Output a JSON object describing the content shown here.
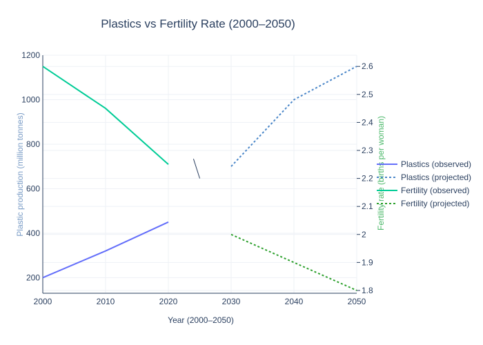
{
  "chart_data": {
    "type": "line",
    "title": "Plastics vs Fertility Rate (2000–2050)",
    "xlabel": "Year (2000–2050)",
    "ylabel_left": "Plastic production (million tonnes)",
    "ylabel_right": "Fertility rate (births per woman)",
    "xlim": [
      2000,
      2050
    ],
    "ylim_left": [
      130,
      1200
    ],
    "ylim_right": [
      1.79,
      2.64
    ],
    "x_ticks": [
      "2000",
      "2010",
      "2020",
      "2030",
      "2040",
      "2050"
    ],
    "y_left_ticks": [
      "200",
      "400",
      "600",
      "800",
      "1000",
      "1200"
    ],
    "y_right_ticks": [
      "1.8",
      "1.9",
      "2",
      "2.1",
      "2.2",
      "2.3",
      "2.4",
      "2.5",
      "2.6"
    ],
    "grid": true,
    "legend_position": "right",
    "series": [
      {
        "name": "Plastics (observed)",
        "axis": "left",
        "dash": "solid",
        "color": "#636efa",
        "x": [
          2000,
          2010,
          2020
        ],
        "y": [
          200,
          320,
          450
        ]
      },
      {
        "name": "Plastics (projected)",
        "axis": "left",
        "dash": "dot",
        "color": "#4a86c8",
        "x": [
          2030,
          2040,
          2050
        ],
        "y": [
          700,
          1000,
          1150
        ]
      },
      {
        "name": "Fertility (observed)",
        "axis": "right",
        "dash": "solid",
        "color": "#00cc96",
        "x": [
          2000,
          2010,
          2020
        ],
        "y": [
          2.6,
          2.45,
          2.25
        ]
      },
      {
        "name": "Fertility (projected)",
        "axis": "right",
        "dash": "dot",
        "color": "#2ca02c",
        "x": [
          2030,
          2040,
          2050
        ],
        "y": [
          2.0,
          1.9,
          1.8
        ]
      }
    ],
    "gap_marker": {
      "x1": 2024.0,
      "y1": 2.27,
      "x2": 2025.0,
      "y2": 2.2,
      "color": "#2a3f5f"
    },
    "colors": {
      "title": "#2a3f5f",
      "left_axis_title": "#7a9cc6",
      "right_axis_title": "#4cb86a"
    }
  }
}
